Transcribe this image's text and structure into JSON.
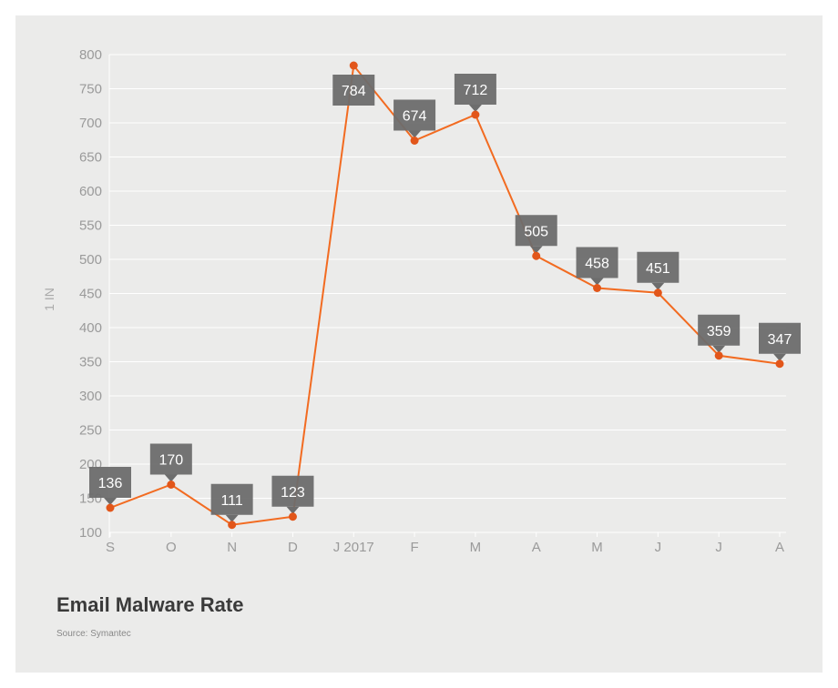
{
  "chart_data": {
    "type": "line",
    "title": "Email Malware Rate",
    "source": "Source: Symantec",
    "ylabel": "1 IN",
    "xlabel": "",
    "categories": [
      "S",
      "O",
      "N",
      "D",
      "J 2017",
      "F",
      "M",
      "A",
      "M",
      "J",
      "J",
      "A"
    ],
    "values": [
      136,
      170,
      111,
      123,
      784,
      674,
      712,
      505,
      458,
      451,
      359,
      347
    ],
    "ylim": [
      100,
      800
    ],
    "yticks": [
      100,
      150,
      200,
      250,
      300,
      350,
      400,
      450,
      500,
      550,
      600,
      650,
      700,
      750,
      800
    ],
    "grid": true,
    "colors": {
      "line": "#f26b21",
      "marker": "#e2561a",
      "label_bg": "#6d6d6d",
      "label_text": "#ffffff"
    }
  }
}
